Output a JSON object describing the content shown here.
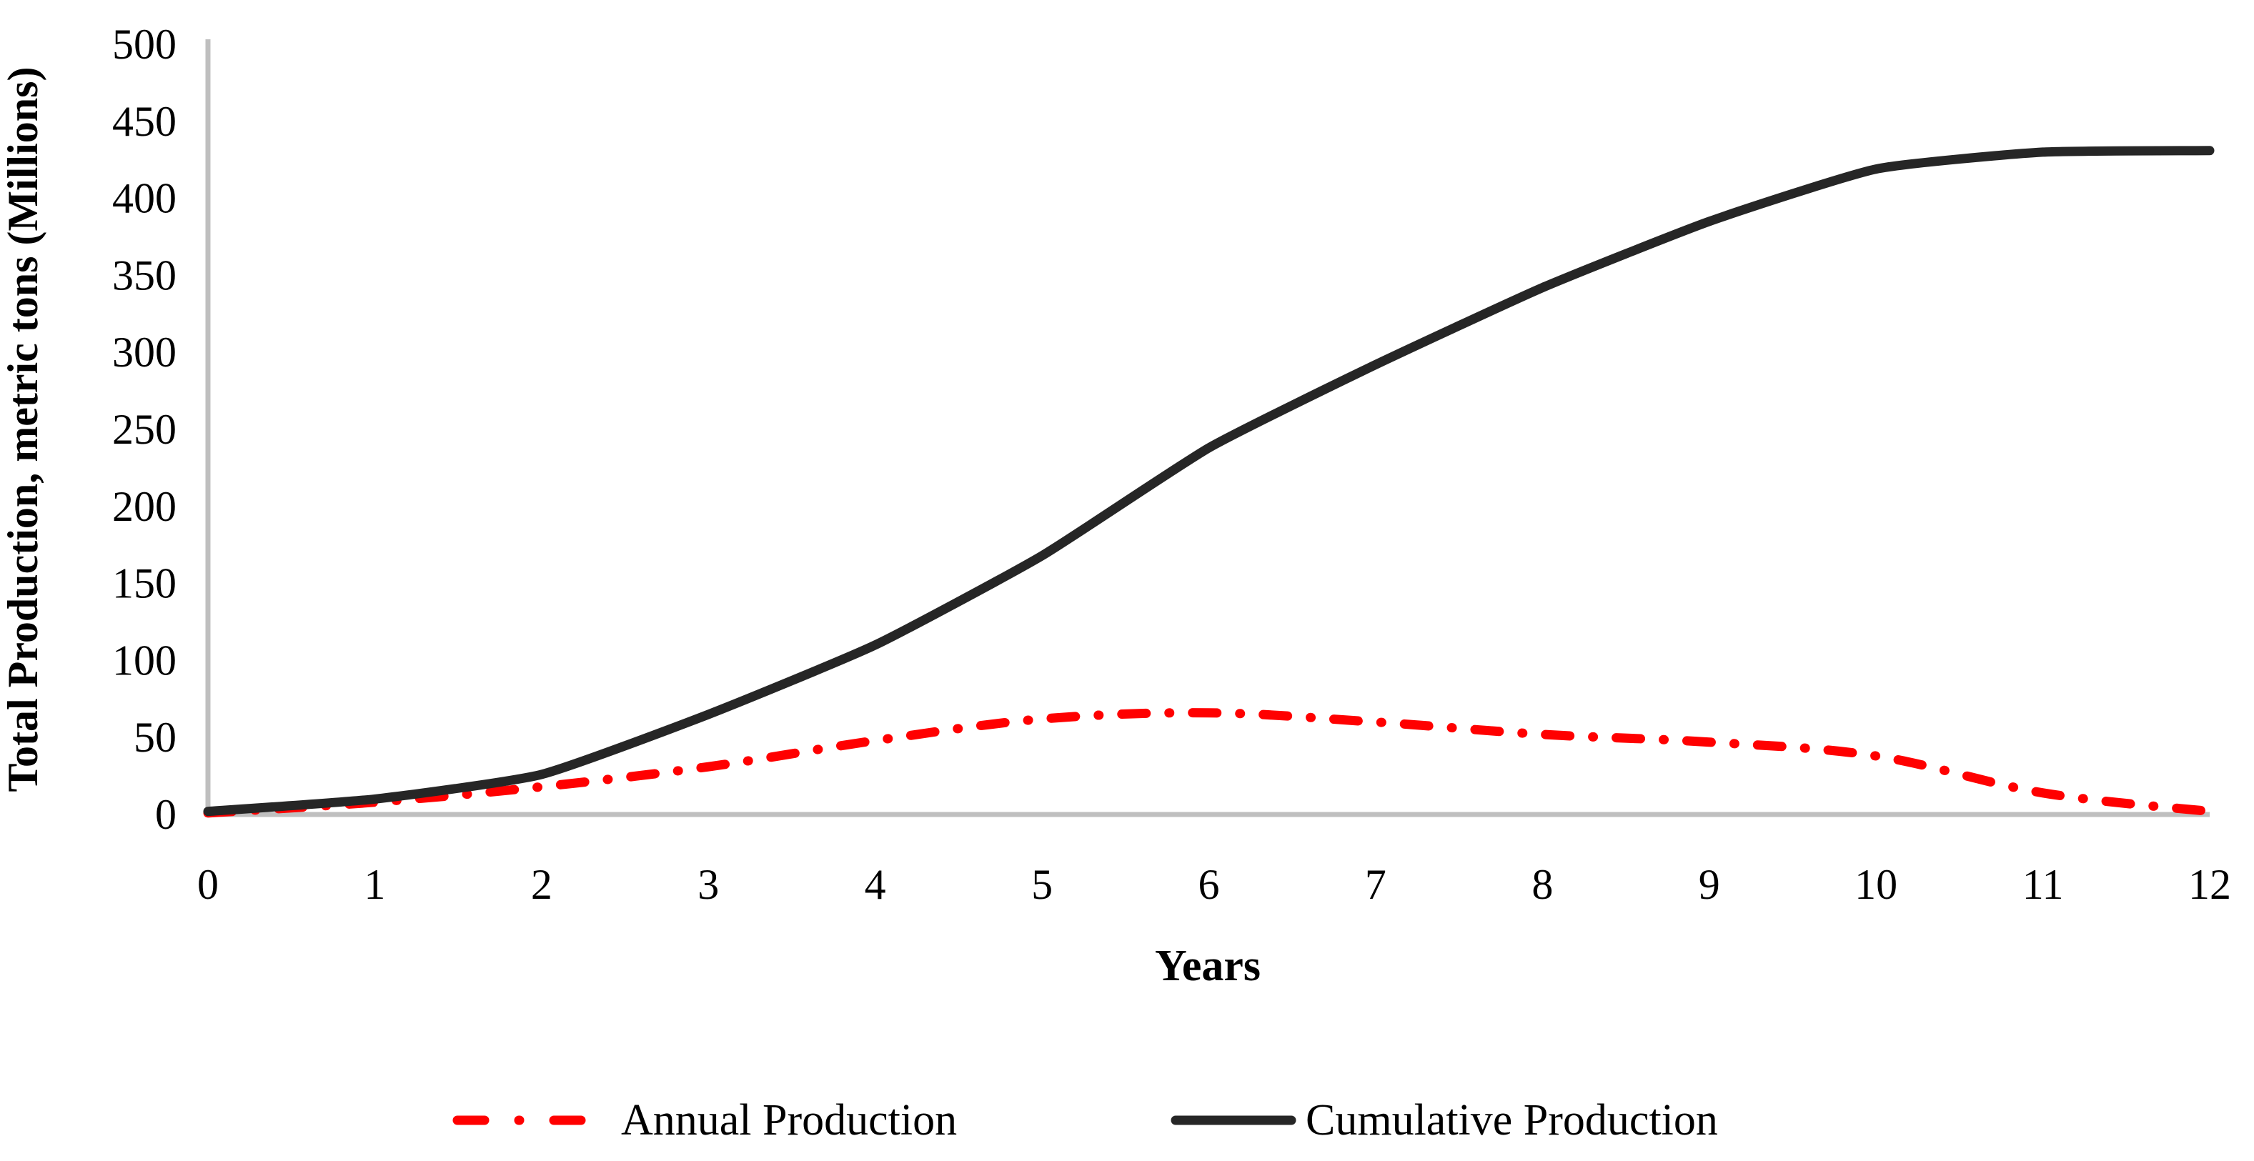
{
  "chart_data": {
    "type": "line",
    "title": "",
    "xlabel": "Years",
    "ylabel": "Total Production, metric tons (Millions)",
    "x": [
      0,
      1,
      2,
      3,
      4,
      5,
      6,
      7,
      8,
      9,
      10,
      11,
      12
    ],
    "x_ticks": [
      0,
      1,
      2,
      3,
      4,
      5,
      6,
      7,
      8,
      9,
      10,
      11,
      12
    ],
    "y_ticks": [
      0,
      50,
      100,
      150,
      200,
      250,
      300,
      350,
      400,
      450,
      500
    ],
    "xlim": [
      0,
      12
    ],
    "ylim": [
      0,
      500
    ],
    "grid": false,
    "legend_position": "bottom-center",
    "axis_color": "#BFBFBF",
    "series": [
      {
        "name": "Annual Production",
        "color": "#FF0000",
        "line_style": "dash-dot",
        "smoothing": 6,
        "values": [
          1,
          8,
          18,
          31,
          48,
          62,
          66,
          60,
          52,
          47,
          38,
          14,
          2
        ]
      },
      {
        "name": "Cumulative Production",
        "color": "#262626",
        "line_style": "solid",
        "smoothing": 12,
        "values": [
          2,
          10,
          26,
          65,
          110,
          168,
          238,
          292,
          342,
          385,
          419,
          430,
          431
        ]
      }
    ]
  }
}
